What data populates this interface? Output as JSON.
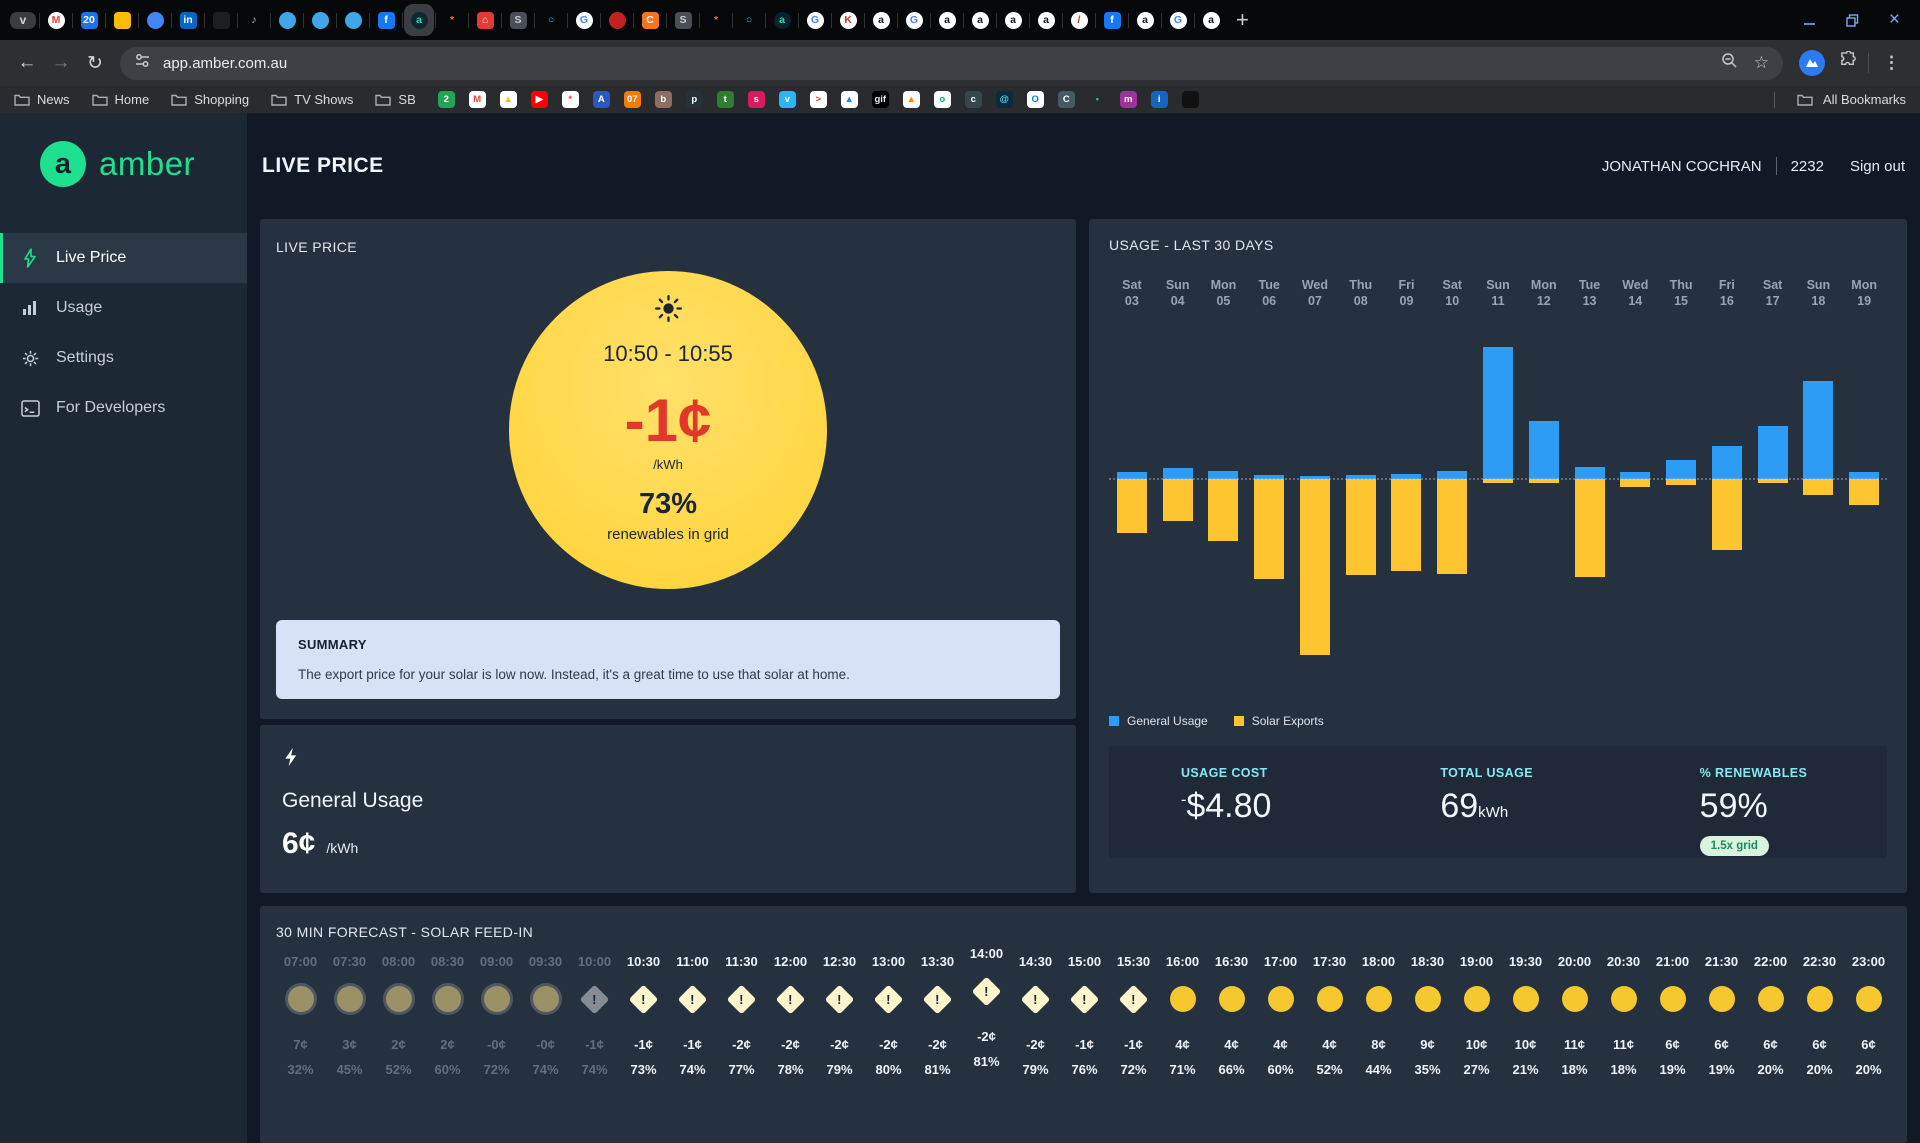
{
  "colors": {
    "green": "#1EE08F",
    "blue": "#2D9CF4",
    "yellow": "#FFC531",
    "red": "#E2382C",
    "cyan": "#86E8F2",
    "circle_yellow": "#FFD640",
    "summary_bg": "#D8E2F7",
    "badge_bg": "#D9F3DF",
    "badge_text": "#1C8A5F"
  },
  "browser": {
    "url": "app.amber.com.au",
    "new_tab_label": "+",
    "all_bookmarks_label": "All Bookmarks",
    "tabs": [
      {
        "name": "tab-search",
        "glyph": "v",
        "bg": "#3A3C40",
        "fg": "#CFD2D6",
        "shape": "rect"
      },
      {
        "name": "gmail",
        "glyph": "M",
        "bg": "#FFFFFF",
        "fg": "#EA4335"
      },
      {
        "name": "google-calendar",
        "glyph": "20",
        "bg": "#1A73E8",
        "fg": "#FFFFFF"
      },
      {
        "name": "google-keep",
        "glyph": "",
        "bg": "#FBBC04",
        "fg": "#FFFFFF"
      },
      {
        "name": "google-chat",
        "glyph": "",
        "bg": "#4285F4",
        "fg": "#FFFFFF"
      },
      {
        "name": "linkedin",
        "glyph": "in",
        "bg": "#0A66C2",
        "fg": "#FFFFFF"
      },
      {
        "name": "blank-tab",
        "glyph": "",
        "bg": "#1C1E22",
        "fg": "#888888"
      },
      {
        "name": "audio-tab",
        "glyph": "♪",
        "bg": "transparent",
        "fg": "#B9BDC2"
      },
      {
        "name": "weather-app",
        "glyph": "",
        "bg": "#3FA7E8",
        "fg": "#FFFFFF"
      },
      {
        "name": "weather-app",
        "glyph": "",
        "bg": "#3FA7E8",
        "fg": "#FFFFFF"
      },
      {
        "name": "weather-app",
        "glyph": "",
        "bg": "#3FA7E8",
        "fg": "#FFFFFF"
      },
      {
        "name": "facebook",
        "glyph": "f",
        "bg": "#1877F2",
        "fg": "#FFFFFF"
      },
      {
        "name": "amber-app",
        "glyph": "a",
        "bg": "#0F2633",
        "fg": "#25E2A4",
        "active": true
      },
      {
        "name": "starburst-app",
        "glyph": "*",
        "bg": "transparent",
        "fg": "#E8702A"
      },
      {
        "name": "home-app",
        "glyph": "⌂",
        "bg": "#E53935",
        "fg": "#FFFFFF"
      },
      {
        "name": "globe-site",
        "glyph": "S",
        "bg": "#4A4F57",
        "fg": "#C9CDD2"
      },
      {
        "name": "power-app",
        "glyph": "○",
        "bg": "transparent",
        "fg": "#53B4F2"
      },
      {
        "name": "google",
        "glyph": "G",
        "bg": "#FFFFFF",
        "fg": "#4285F4"
      },
      {
        "name": "red-app",
        "glyph": "",
        "bg": "#C5221F",
        "fg": "#FFFFFF"
      },
      {
        "name": "orange-app",
        "glyph": "C",
        "bg": "#F47521",
        "fg": "#FFFFFF"
      },
      {
        "name": "globe-site",
        "glyph": "S",
        "bg": "#4A4F57",
        "fg": "#C9CDD2"
      },
      {
        "name": "starburst-app",
        "glyph": "*",
        "bg": "transparent",
        "fg": "#E8702A"
      },
      {
        "name": "power-app",
        "glyph": "○",
        "bg": "transparent",
        "fg": "#53B4F2"
      },
      {
        "name": "amber-app",
        "glyph": "a",
        "bg": "#072330",
        "fg": "#25E2A4"
      },
      {
        "name": "google",
        "glyph": "G",
        "bg": "#FFFFFF",
        "fg": "#4285F4"
      },
      {
        "name": "kmart",
        "glyph": "K",
        "bg": "#FFFFFF",
        "fg": "#D32F2F"
      },
      {
        "name": "amazon",
        "glyph": "a",
        "bg": "#FFFFFF",
        "fg": "#131921"
      },
      {
        "name": "google",
        "glyph": "G",
        "bg": "#FFFFFF",
        "fg": "#4285F4"
      },
      {
        "name": "amazon",
        "glyph": "a",
        "bg": "#FFFFFF",
        "fg": "#131921"
      },
      {
        "name": "amazon",
        "glyph": "a",
        "bg": "#FFFFFF",
        "fg": "#131921"
      },
      {
        "name": "amazon",
        "glyph": "a",
        "bg": "#FFFFFF",
        "fg": "#131921"
      },
      {
        "name": "amazon",
        "glyph": "a",
        "bg": "#FFFFFF",
        "fg": "#131921"
      },
      {
        "name": "red-flag-app",
        "glyph": "/",
        "bg": "#FFFFFF",
        "fg": "#D32F2F"
      },
      {
        "name": "facebook",
        "glyph": "f",
        "bg": "#1877F2",
        "fg": "#FFFFFF"
      },
      {
        "name": "amazon",
        "glyph": "a",
        "bg": "#FFFFFF",
        "fg": "#131921"
      },
      {
        "name": "google",
        "glyph": "G",
        "bg": "#FFFFFF",
        "fg": "#4285F4"
      },
      {
        "name": "amazon",
        "glyph": "a",
        "bg": "#FFFFFF",
        "fg": "#131921"
      }
    ],
    "bookmark_folders": [
      "News",
      "Home",
      "Shopping",
      "TV Shows",
      "SB"
    ],
    "bookmark_favicons": [
      {
        "name": "badge-2",
        "glyph": "2",
        "bg": "#23A455",
        "fg": "#FFFFFF"
      },
      {
        "name": "gmail",
        "glyph": "M",
        "bg": "#FFFFFF",
        "fg": "#EA4335"
      },
      {
        "name": "google-drive",
        "glyph": "▲",
        "bg": "#FFFFFF",
        "fg": "#FBBC04"
      },
      {
        "name": "youtube",
        "glyph": "▶",
        "bg": "#FF0000",
        "fg": "#FFFFFF"
      },
      {
        "name": "google-photos",
        "glyph": "*",
        "bg": "#FFFFFF",
        "fg": "#EA4335"
      },
      {
        "name": "site-blue",
        "glyph": "A",
        "bg": "#2A56C6",
        "fg": "#FFFFFF"
      },
      {
        "name": "site-07",
        "glyph": "07",
        "bg": "#F57C00",
        "fg": "#FFFFFF"
      },
      {
        "name": "site-bear",
        "glyph": "b",
        "bg": "#8D6E63",
        "fg": "#FFFFFF"
      },
      {
        "name": "site-paw",
        "glyph": "p",
        "bg": "#263238",
        "fg": "#FFFFFF"
      },
      {
        "name": "site-tree",
        "glyph": "t",
        "bg": "#2E7D32",
        "fg": "#FFFFFF"
      },
      {
        "name": "site-berry",
        "glyph": "s",
        "bg": "#D81B60",
        "fg": "#FFFFFF"
      },
      {
        "name": "site-bird",
        "glyph": "v",
        "bg": "#29B6F6",
        "fg": "#FFFFFF"
      },
      {
        "name": "site-arrow",
        "glyph": ">",
        "bg": "#FFFFFF",
        "fg": "#E53935"
      },
      {
        "name": "site-mountain",
        "glyph": "▲",
        "bg": "#FFFFFF",
        "fg": "#1E88E5"
      },
      {
        "name": "giphy",
        "glyph": "gif",
        "bg": "#000000",
        "fg": "#E8EAED"
      },
      {
        "name": "site-orange",
        "glyph": "▲",
        "bg": "#FFFFFF",
        "fg": "#FB8C00"
      },
      {
        "name": "site-green-ring",
        "glyph": "o",
        "bg": "#FFFFFF",
        "fg": "#00B05C"
      },
      {
        "name": "site-car",
        "glyph": "c",
        "bg": "#37474F",
        "fg": "#FFFFFF"
      },
      {
        "name": "react-site",
        "glyph": "@",
        "bg": "#0B2B3A",
        "fg": "#61DAFB"
      },
      {
        "name": "site-ring-blue",
        "glyph": "O",
        "bg": "#FFFFFF",
        "fg": "#0288D1"
      },
      {
        "name": "site-c",
        "glyph": "C",
        "bg": "#455A64",
        "fg": "#FFFFFF"
      },
      {
        "name": "site-dot",
        "glyph": "•",
        "bg": "transparent",
        "fg": "#28C76F"
      },
      {
        "name": "site-m",
        "glyph": "m",
        "bg": "#A0319E",
        "fg": "#FFFFFF"
      },
      {
        "name": "site-info",
        "glyph": "i",
        "bg": "#1565C0",
        "fg": "#FFFFFF"
      },
      {
        "name": "site-dark",
        "glyph": "",
        "bg": "#111111",
        "fg": "#FFFFFF"
      }
    ]
  },
  "sidebar": {
    "brand": "amber",
    "items": [
      {
        "label": "Live Price",
        "icon": "bolt",
        "active": true
      },
      {
        "label": "Usage",
        "icon": "chart",
        "active": false
      },
      {
        "label": "Settings",
        "icon": "gear",
        "active": false
      },
      {
        "label": "For Developers",
        "icon": "terminal",
        "active": false
      }
    ]
  },
  "header": {
    "title": "LIVE PRICE",
    "user": "JONATHAN COCHRAN",
    "account": "2232",
    "signout": "Sign out"
  },
  "live": {
    "panel_title": "LIVE PRICE",
    "time_range": "10:50 - 10:55",
    "price": "-1¢",
    "unit": "/kWh",
    "renewables": "73%",
    "renewables_label": "renewables in grid",
    "summary_title": "SUMMARY",
    "summary_text": "The export price for your solar is low now. Instead, it's a great time to use that solar at home."
  },
  "general_usage": {
    "label": "General Usage",
    "price": "6¢",
    "unit": "/kWh"
  },
  "usage_panel": {
    "title": "USAGE - LAST 30 DAYS",
    "stats": [
      {
        "label": "USAGE COST",
        "prefix": "-",
        "value": "$4.80"
      },
      {
        "label": "TOTAL USAGE",
        "value": "69",
        "suffix": "kWh"
      },
      {
        "label": "% RENEWABLES",
        "value": "59%",
        "badge": "1.5x grid"
      }
    ]
  },
  "forecast_panel": {
    "title": "30 MIN FORECAST - SOLAR FEED-IN"
  },
  "chart_data": [
    {
      "type": "bar",
      "title": "USAGE - LAST 30 DAYS",
      "categories": [
        "Sat 03",
        "Sun 04",
        "Mon 05",
        "Tue 06",
        "Wed 07",
        "Thu 08",
        "Fri 09",
        "Sat 10",
        "Sun 11",
        "Mon 12",
        "Tue 13",
        "Wed 14",
        "Thu 15",
        "Fri 16",
        "Sat 17",
        "Sun 18",
        "Mon 19"
      ],
      "series": [
        {
          "name": "General Usage",
          "color": "#2D9CF4",
          "values": [
            0.7,
            1.1,
            0.8,
            0.4,
            0.3,
            0.4,
            0.5,
            0.8,
            13.2,
            5.8,
            1.2,
            0.7,
            1.9,
            3.3,
            5.3,
            9.8,
            0.7
          ]
        },
        {
          "name": "Solar Exports",
          "color": "#FFC531",
          "values": [
            -5.4,
            -4.2,
            -6.2,
            -10.0,
            -17.6,
            -9.6,
            -9.2,
            -9.5,
            -0.4,
            -0.4,
            -9.8,
            -0.8,
            -0.6,
            -7.1,
            -0.4,
            -1.6,
            -2.6
          ]
        }
      ],
      "ylabel": "kWh (estimated from bar heights; no axis labels shown)",
      "baseline": 0,
      "grid": false,
      "legend_position": "bottom"
    },
    {
      "type": "table",
      "title": "30 MIN FORECAST - SOLAR FEED-IN",
      "columns": [
        "time",
        "price",
        "renewables_pct",
        "state"
      ],
      "highlight": "14:00",
      "rows": [
        [
          "07:00",
          "7¢",
          "32%",
          "past-sun"
        ],
        [
          "07:30",
          "3¢",
          "45%",
          "past-sun"
        ],
        [
          "08:00",
          "2¢",
          "52%",
          "past-sun"
        ],
        [
          "08:30",
          "2¢",
          "60%",
          "past-sun"
        ],
        [
          "09:00",
          "-0¢",
          "72%",
          "past-sun"
        ],
        [
          "09:30",
          "-0¢",
          "74%",
          "past-sun"
        ],
        [
          "10:00",
          "-1¢",
          "74%",
          "past-warn"
        ],
        [
          "10:30",
          "-1¢",
          "73%",
          "warn"
        ],
        [
          "11:00",
          "-1¢",
          "74%",
          "warn"
        ],
        [
          "11:30",
          "-2¢",
          "77%",
          "warn"
        ],
        [
          "12:00",
          "-2¢",
          "78%",
          "warn"
        ],
        [
          "12:30",
          "-2¢",
          "79%",
          "warn"
        ],
        [
          "13:00",
          "-2¢",
          "80%",
          "warn"
        ],
        [
          "13:30",
          "-2¢",
          "81%",
          "warn"
        ],
        [
          "14:00",
          "-2¢",
          "81%",
          "warn"
        ],
        [
          "14:30",
          "-2¢",
          "79%",
          "warn"
        ],
        [
          "15:00",
          "-1¢",
          "76%",
          "warn"
        ],
        [
          "15:30",
          "-1¢",
          "72%",
          "warn"
        ],
        [
          "16:00",
          "4¢",
          "71%",
          "sun"
        ],
        [
          "16:30",
          "4¢",
          "66%",
          "sun"
        ],
        [
          "17:00",
          "4¢",
          "60%",
          "sun"
        ],
        [
          "17:30",
          "4¢",
          "52%",
          "sun"
        ],
        [
          "18:00",
          "8¢",
          "44%",
          "sun"
        ],
        [
          "18:30",
          "9¢",
          "35%",
          "sun"
        ],
        [
          "19:00",
          "10¢",
          "27%",
          "sun"
        ],
        [
          "19:30",
          "10¢",
          "21%",
          "sun"
        ],
        [
          "20:00",
          "11¢",
          "18%",
          "sun"
        ],
        [
          "20:30",
          "11¢",
          "18%",
          "sun"
        ],
        [
          "21:00",
          "6¢",
          "19%",
          "sun"
        ],
        [
          "21:30",
          "6¢",
          "19%",
          "sun"
        ],
        [
          "22:00",
          "6¢",
          "20%",
          "sun"
        ],
        [
          "22:30",
          "6¢",
          "20%",
          "sun"
        ],
        [
          "23:00",
          "6¢",
          "20%",
          "sun"
        ]
      ]
    }
  ]
}
